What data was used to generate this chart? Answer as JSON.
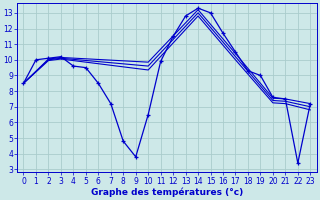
{
  "xlabel": "Graphe des températures (°c)",
  "background_color": "#cde8e8",
  "grid_color": "#aacccc",
  "line_color": "#0000cc",
  "xlim": [
    -0.5,
    23.5
  ],
  "ylim": [
    2.8,
    13.6
  ],
  "xticks": [
    0,
    1,
    2,
    3,
    4,
    5,
    6,
    7,
    8,
    9,
    10,
    11,
    12,
    13,
    14,
    15,
    16,
    17,
    18,
    19,
    20,
    21,
    22,
    23
  ],
  "yticks": [
    3,
    4,
    5,
    6,
    7,
    8,
    9,
    10,
    11,
    12,
    13
  ],
  "line1_x": [
    0,
    1,
    2,
    3,
    4,
    5,
    6,
    7,
    8,
    9,
    10,
    11,
    12,
    13,
    14,
    15,
    16,
    17,
    18,
    19,
    20,
    21,
    22,
    23
  ],
  "line1_y": [
    8.5,
    10.0,
    10.1,
    10.2,
    9.6,
    9.5,
    8.5,
    7.2,
    4.8,
    3.8,
    6.5,
    9.9,
    11.5,
    12.8,
    13.3,
    13.0,
    11.7,
    10.5,
    9.3,
    9.0,
    7.6,
    7.5,
    3.4,
    7.2
  ],
  "line2_x": [
    0,
    2,
    3,
    10,
    14,
    17,
    20,
    21,
    23
  ],
  "line2_y": [
    8.5,
    10.05,
    10.15,
    9.85,
    13.2,
    10.4,
    7.55,
    7.5,
    7.2
  ],
  "line3_x": [
    0,
    2,
    3,
    10,
    14,
    17,
    20,
    21,
    23
  ],
  "line3_y": [
    8.5,
    10.0,
    10.1,
    9.6,
    13.0,
    10.2,
    7.4,
    7.35,
    7.0
  ],
  "line4_x": [
    0,
    2,
    3,
    10,
    14,
    17,
    20,
    21,
    23
  ],
  "line4_y": [
    8.5,
    9.95,
    10.05,
    9.35,
    12.8,
    10.0,
    7.25,
    7.2,
    6.8
  ],
  "tick_fontsize": 5.5,
  "xlabel_fontsize": 6.5
}
